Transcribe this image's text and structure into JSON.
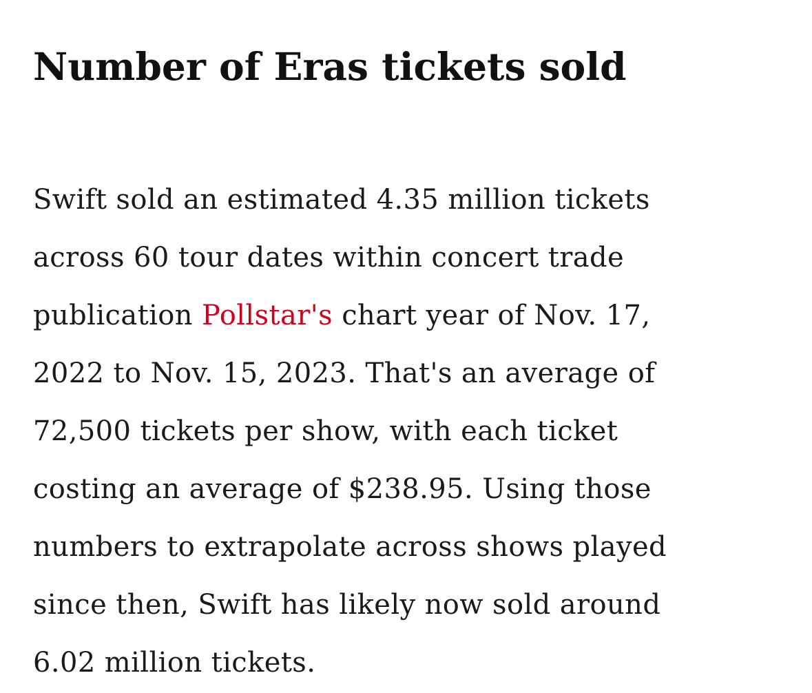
{
  "article": {
    "heading": "Number of Eras tickets sold",
    "paragraph": {
      "line1": "Swift sold an estimated 4.35 million tickets",
      "line2": "across 60 tour dates within concert trade",
      "line3_before": "publication ",
      "link_text": "Pollstar's",
      "line3_after": " chart year of Nov. 17,",
      "line4": "2022 to Nov. 15, 2023. That's an average of",
      "line5": "72,500 tickets per show, with each ticket",
      "line6": "costing an average of $238.95. Using those",
      "line7": "numbers to extrapolate across shows played",
      "line8": "since then, Swift has likely now sold around",
      "line9": "6.02 million tickets."
    }
  },
  "colors": {
    "text": "#1a1a1a",
    "link": "#d0021b",
    "background": "#ffffff"
  }
}
